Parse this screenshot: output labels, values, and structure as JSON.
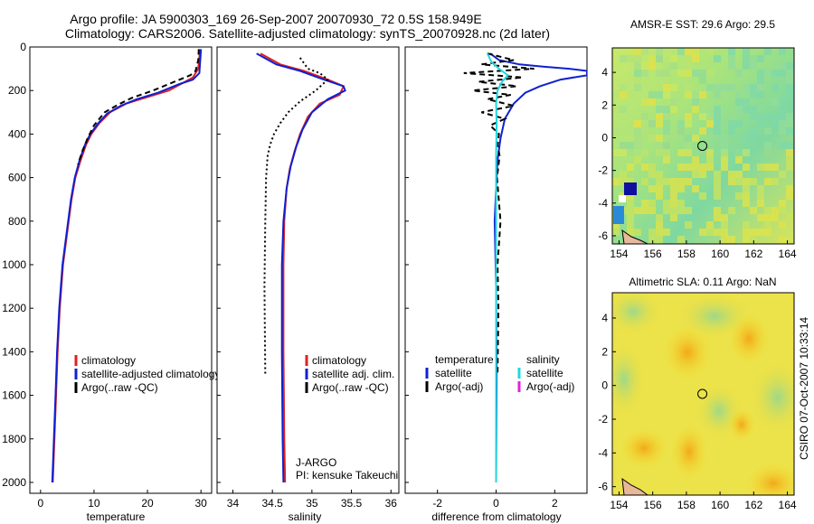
{
  "title_line1": "Argo profile: JA 5900303_169 26-Sep-2007 20070930_72 0.5S 158.949E",
  "title_line2": "Climatology: CARS2006. Satellite-adjusted climatology: synTS_20070928.nc (2d later)",
  "side_stamp": "CSIRO 07-Oct-2007 10:33:14",
  "colors": {
    "clim": "#e02020",
    "sat": "#1020d0",
    "argo": "#000000",
    "sal_sat": "#20d8e0",
    "sal_argo": "#e020e0"
  },
  "chart_data": [
    {
      "type": "line",
      "id": "temperature",
      "xlabel": "temperature",
      "xlim": [
        -2,
        32
      ],
      "ylim": [
        2050,
        0
      ],
      "xticks": [
        "0",
        "10",
        "20",
        "30"
      ],
      "yticks": [
        "0",
        "200",
        "400",
        "600",
        "800",
        "1000",
        "1200",
        "1400",
        "1600",
        "1800",
        "2000"
      ],
      "legend": [
        "climatology",
        "satellite-adjusted climatology",
        "Argo(..raw -QC)"
      ],
      "series": [
        {
          "name": "climatology",
          "x": [
            29.8,
            29.7,
            29.5,
            28.5,
            27,
            24,
            20,
            16,
            13,
            11,
            9.5,
            8.5,
            7.5,
            6.5,
            5.8,
            5,
            4.2,
            3.6,
            3.2,
            2.9,
            2.6,
            2.3
          ],
          "y": [
            10,
            50,
            100,
            140,
            160,
            200,
            230,
            260,
            300,
            350,
            400,
            450,
            520,
            600,
            700,
            850,
            1000,
            1200,
            1400,
            1600,
            1800,
            2000
          ]
        },
        {
          "name": "satellite-adjusted climatology",
          "x": [
            30,
            29.9,
            29.7,
            28.5,
            26,
            22,
            18,
            15,
            12.5,
            10.8,
            9.3,
            8.3,
            7.3,
            6.4,
            5.7,
            4.9,
            4.1,
            3.5,
            3.1,
            2.8,
            2.5,
            2.2
          ],
          "y": [
            10,
            50,
            120,
            150,
            170,
            210,
            240,
            270,
            305,
            350,
            400,
            450,
            520,
            600,
            700,
            850,
            1000,
            1200,
            1400,
            1600,
            1800,
            2000
          ]
        },
        {
          "name": "Argo(..raw -QC)",
          "x": [
            29.6,
            29.5,
            29,
            28,
            25,
            21,
            17,
            14.5,
            12,
            10,
            8.8,
            7.8,
            7
          ],
          "y": [
            10,
            60,
            110,
            130,
            160,
            200,
            235,
            265,
            300,
            360,
            420,
            480,
            540
          ]
        }
      ]
    },
    {
      "type": "line",
      "id": "salinity",
      "xlabel": "salinity",
      "xlim": [
        33.8,
        36.1
      ],
      "ylim": [
        2050,
        0
      ],
      "xticks": [
        "34",
        "34.5",
        "35",
        "35.5",
        "36"
      ],
      "legend": [
        "climatology",
        "satellite adj. clim.",
        "Argo(..raw -QC)"
      ],
      "series": [
        {
          "name": "climatology",
          "x": [
            34.35,
            34.6,
            34.9,
            35.2,
            35.4,
            35.35,
            35.1,
            34.95,
            34.85,
            34.78,
            34.72,
            34.68,
            34.65,
            34.64,
            34.64,
            34.65,
            34.66
          ],
          "y": [
            30,
            80,
            110,
            150,
            180,
            220,
            260,
            320,
            400,
            480,
            560,
            650,
            800,
            1000,
            1400,
            1800,
            2000
          ]
        },
        {
          "name": "satellite adj. clim.",
          "x": [
            34.3,
            34.55,
            34.85,
            35.15,
            35.4,
            35.42,
            35.2,
            35.0,
            34.88,
            34.8,
            34.73,
            34.68,
            34.64,
            34.62,
            34.62,
            34.63,
            34.64
          ],
          "y": [
            30,
            80,
            110,
            150,
            180,
            200,
            240,
            300,
            380,
            460,
            550,
            650,
            800,
            1000,
            1400,
            1800,
            2000
          ]
        },
        {
          "name": "Argo(..raw -QC)",
          "x": [
            34.85,
            34.95,
            35.1,
            35.2,
            35.05,
            34.85,
            34.7,
            34.6,
            34.52,
            34.47,
            34.44,
            34.42,
            34.41,
            34.4,
            34.41
          ],
          "y": [
            50,
            100,
            120,
            150,
            200,
            250,
            300,
            350,
            400,
            450,
            500,
            600,
            800,
            1100,
            1500
          ]
        }
      ],
      "annotations": [
        "J-ARGO",
        "PI: kensuke Takeuchi"
      ]
    },
    {
      "type": "line",
      "id": "difference",
      "xlabel": "difference from climatology",
      "xlim": [
        -3.1,
        3.1
      ],
      "ylim": [
        2050,
        0
      ],
      "xticks": [
        "-2",
        "0",
        "2"
      ],
      "legend_headers": [
        "temperature",
        "salinity"
      ],
      "legend": [
        "satellite",
        "Argo(-adj)",
        "satellite",
        "Argo(-adj)"
      ],
      "series": [
        {
          "name": "temperature satellite",
          "x": [
            -0.2,
            0.1,
            0.8,
            1.6,
            2.5,
            3.1,
            3.1,
            2.2,
            1.5,
            1.0,
            0.6,
            0.3,
            0.15,
            0.05,
            0,
            -0.05,
            0,
            0.02,
            0
          ],
          "y": [
            30,
            60,
            80,
            90,
            100,
            110,
            130,
            150,
            180,
            210,
            260,
            330,
            420,
            520,
            650,
            800,
            1100,
            1500,
            2000
          ]
        },
        {
          "name": "temperature Argo(-adj)",
          "x": [
            -0.3,
            0.6,
            -0.5,
            1.3,
            -1.1,
            0.9,
            -0.6,
            0.7,
            -0.8,
            0.5,
            -0.3,
            0.6,
            -0.5,
            0.3,
            -0.2,
            0.1,
            0.05,
            0.12,
            0.03,
            0.15,
            0.05,
            0.08,
            0.05
          ],
          "y": [
            30,
            60,
            80,
            100,
            120,
            140,
            160,
            180,
            200,
            220,
            240,
            270,
            300,
            330,
            360,
            400,
            450,
            500,
            600,
            800,
            1000,
            1200,
            1500
          ]
        },
        {
          "name": "salinity satellite",
          "x": [
            -0.3,
            -0.15,
            0.1,
            0.4,
            0.2,
            0.05,
            0,
            0.02,
            0,
            0,
            0
          ],
          "y": [
            30,
            70,
            100,
            130,
            160,
            200,
            260,
            350,
            500,
            1000,
            2000
          ]
        },
        {
          "name": "salinity Argo(-adj)",
          "x": [],
          "y": []
        }
      ]
    }
  ],
  "sst_map": {
    "title": "AMSR-E SST: 29.6 Argo: 29.5",
    "xticks": [
      "154",
      "156",
      "158",
      "160",
      "162",
      "164"
    ],
    "yticks": [
      "4",
      "2",
      "0",
      "-2",
      "-4",
      "-6"
    ],
    "marker": {
      "lon": 158.95,
      "lat": -0.5
    }
  },
  "sla_map": {
    "title": "Altimetric SLA: 0.11 Argo: NaN",
    "xticks": [
      "154",
      "156",
      "158",
      "160",
      "162",
      "164"
    ],
    "yticks": [
      "4",
      "2",
      "0",
      "-2",
      "-4",
      "-6"
    ],
    "marker": {
      "lon": 158.95,
      "lat": -0.5
    }
  }
}
